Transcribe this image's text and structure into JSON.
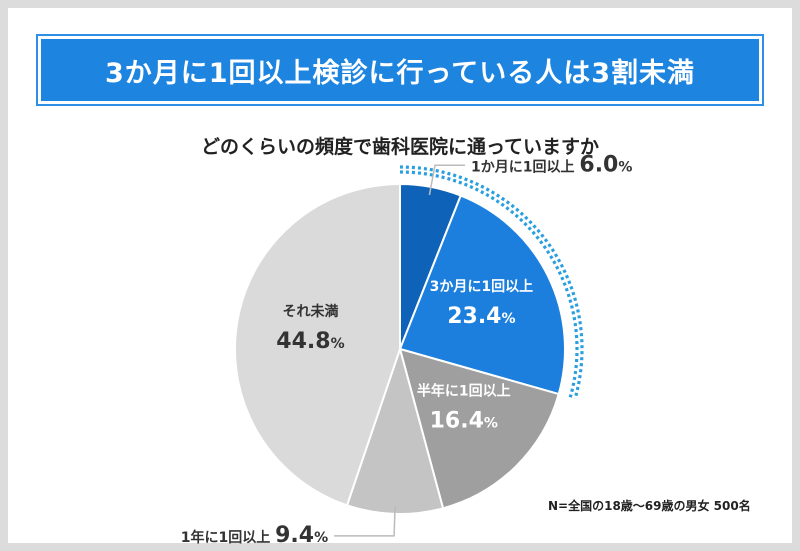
{
  "header": {
    "title": "3か月に1回以上検診に行っている人は3割未満"
  },
  "chart_data": {
    "type": "pie",
    "title": "どのくらいの頻度で歯科医院に通っていますか",
    "unit": "%",
    "categories": [
      "1か月に1回以上",
      "3か月に1回以上",
      "半年に1回以上",
      "1年に1回以上",
      "それ未満"
    ],
    "values": [
      6.0,
      23.4,
      16.4,
      9.4,
      44.8
    ],
    "colors": [
      "#0e63b8",
      "#1c7fdd",
      "#9f9f9f",
      "#c4c4c4",
      "#dadada"
    ],
    "label_colors": [
      "#333333",
      "#ffffff",
      "#ffffff",
      "#333333",
      "#333333"
    ],
    "highlight": {
      "from_category": "1か月に1回以上",
      "to_category": "3か月に1回以上",
      "color": "#2a9fe0",
      "style": "dotted"
    },
    "note": "N=全国の18歳～69歳の男女 500名"
  }
}
